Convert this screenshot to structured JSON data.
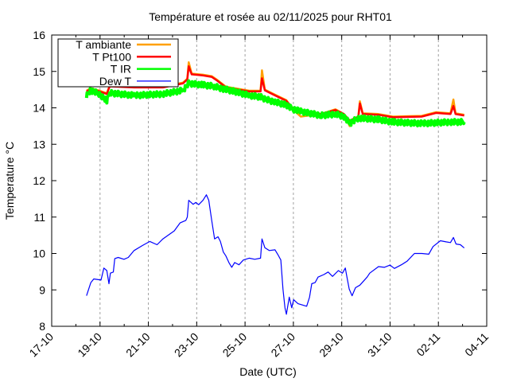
{
  "chart_data": {
    "type": "line",
    "title": "Température et rosée au 02/11/2025 pour RHT01",
    "xlabel": "Date (UTC)",
    "ylabel": "Temperature °C",
    "x_unit": "days since 17-10 00:00",
    "xlim": [
      0,
      18
    ],
    "ylim": [
      8,
      16
    ],
    "x_ticks": [
      {
        "value": 0,
        "label": "17-10"
      },
      {
        "value": 2,
        "label": "19-10"
      },
      {
        "value": 4,
        "label": "21-10"
      },
      {
        "value": 6,
        "label": "23-10"
      },
      {
        "value": 8,
        "label": "25-10"
      },
      {
        "value": 10,
        "label": "27-10"
      },
      {
        "value": 12,
        "label": "29-10"
      },
      {
        "value": 14,
        "label": "31-10"
      },
      {
        "value": 16,
        "label": "02-11"
      },
      {
        "value": 18,
        "label": "04-11"
      }
    ],
    "y_ticks": [
      {
        "value": 8,
        "label": "8"
      },
      {
        "value": 9,
        "label": "9"
      },
      {
        "value": 10,
        "label": "10"
      },
      {
        "value": 11,
        "label": "11"
      },
      {
        "value": 12,
        "label": "12"
      },
      {
        "value": 13,
        "label": "13"
      },
      {
        "value": 14,
        "label": "14"
      },
      {
        "value": 15,
        "label": "15"
      },
      {
        "value": 16,
        "label": "16"
      }
    ],
    "grid": "vertical dashed",
    "legend_position": "top-left",
    "series": [
      {
        "name": "T ambiante",
        "color": "#ffa000",
        "points": [
          [
            1.44,
            14.47
          ],
          [
            1.62,
            14.54
          ],
          [
            1.98,
            14.47
          ],
          [
            2.28,
            14.4
          ],
          [
            2.4,
            14.61
          ],
          [
            3.41,
            14.58
          ],
          [
            4.6,
            14.58
          ],
          [
            5.43,
            14.69
          ],
          [
            5.61,
            14.8
          ],
          [
            5.67,
            15.25
          ],
          [
            5.79,
            14.94
          ],
          [
            6.26,
            14.91
          ],
          [
            6.62,
            14.87
          ],
          [
            6.86,
            14.76
          ],
          [
            7.21,
            14.58
          ],
          [
            7.57,
            14.54
          ],
          [
            8.17,
            14.47
          ],
          [
            8.64,
            14.47
          ],
          [
            8.7,
            15.03
          ],
          [
            8.82,
            14.5
          ],
          [
            9.24,
            14.36
          ],
          [
            9.71,
            14.21
          ],
          [
            9.95,
            13.97
          ],
          [
            10.31,
            13.76
          ],
          [
            11.14,
            13.83
          ],
          [
            11.74,
            13.96
          ],
          [
            12.09,
            13.83
          ],
          [
            12.33,
            13.5
          ],
          [
            12.69,
            13.78
          ],
          [
            12.75,
            14.18
          ],
          [
            12.87,
            13.85
          ],
          [
            13.52,
            13.83
          ],
          [
            14.12,
            13.76
          ],
          [
            15.31,
            13.78
          ],
          [
            15.9,
            13.88
          ],
          [
            16.5,
            13.85
          ],
          [
            16.62,
            14.23
          ],
          [
            16.71,
            13.85
          ],
          [
            17.07,
            13.81
          ]
        ]
      },
      {
        "name": "T Pt100",
        "color": "#ff0000",
        "points": [
          [
            1.44,
            14.45
          ],
          [
            1.62,
            14.52
          ],
          [
            1.98,
            14.45
          ],
          [
            2.28,
            14.38
          ],
          [
            2.4,
            14.59
          ],
          [
            3.41,
            14.56
          ],
          [
            4.6,
            14.56
          ],
          [
            5.43,
            14.67
          ],
          [
            5.61,
            14.78
          ],
          [
            5.67,
            15.14
          ],
          [
            5.79,
            14.92
          ],
          [
            6.26,
            14.89
          ],
          [
            6.62,
            14.85
          ],
          [
            6.86,
            14.74
          ],
          [
            7.21,
            14.56
          ],
          [
            7.57,
            14.52
          ],
          [
            8.17,
            14.45
          ],
          [
            8.64,
            14.45
          ],
          [
            8.7,
            14.81
          ],
          [
            8.82,
            14.48
          ],
          [
            9.24,
            14.34
          ],
          [
            9.71,
            14.19
          ],
          [
            9.95,
            14.01
          ],
          [
            10.31,
            13.94
          ],
          [
            11.14,
            13.83
          ],
          [
            11.74,
            13.94
          ],
          [
            12.09,
            13.83
          ],
          [
            12.33,
            13.65
          ],
          [
            12.69,
            13.76
          ],
          [
            12.75,
            14.12
          ],
          [
            12.87,
            13.83
          ],
          [
            13.52,
            13.81
          ],
          [
            14.12,
            13.74
          ],
          [
            15.31,
            13.76
          ],
          [
            15.9,
            13.86
          ],
          [
            16.5,
            13.83
          ],
          [
            16.62,
            14.05
          ],
          [
            16.71,
            13.83
          ],
          [
            17.07,
            13.79
          ]
        ]
      },
      {
        "name": "T IR",
        "color": "#00ff00",
        "points": [
          [
            1.44,
            14.34
          ],
          [
            1.62,
            14.48
          ],
          [
            1.98,
            14.38
          ],
          [
            2.28,
            14.19
          ],
          [
            2.4,
            14.41
          ],
          [
            3.41,
            14.34
          ],
          [
            4.6,
            14.38
          ],
          [
            5.43,
            14.48
          ],
          [
            5.67,
            14.67
          ],
          [
            6.26,
            14.63
          ],
          [
            6.74,
            14.59
          ],
          [
            7.1,
            14.52
          ],
          [
            7.57,
            14.45
          ],
          [
            8.17,
            14.34
          ],
          [
            8.64,
            14.3
          ],
          [
            8.88,
            14.23
          ],
          [
            9.24,
            14.16
          ],
          [
            9.71,
            14.08
          ],
          [
            9.95,
            13.97
          ],
          [
            10.31,
            13.9
          ],
          [
            11.14,
            13.79
          ],
          [
            11.74,
            13.83
          ],
          [
            12.09,
            13.76
          ],
          [
            12.33,
            13.57
          ],
          [
            12.69,
            13.72
          ],
          [
            13.52,
            13.68
          ],
          [
            14.12,
            13.61
          ],
          [
            15.31,
            13.57
          ],
          [
            16.5,
            13.61
          ],
          [
            17.07,
            13.61
          ]
        ]
      },
      {
        "name": "Dew T",
        "color": "#0000ff",
        "points": [
          [
            1.44,
            8.84
          ],
          [
            1.62,
            9.2
          ],
          [
            1.74,
            9.3
          ],
          [
            2.04,
            9.27
          ],
          [
            2.16,
            9.6
          ],
          [
            2.28,
            9.53
          ],
          [
            2.37,
            9.17
          ],
          [
            2.43,
            9.46
          ],
          [
            2.55,
            9.49
          ],
          [
            2.61,
            9.86
          ],
          [
            2.75,
            9.89
          ],
          [
            2.99,
            9.84
          ],
          [
            3.17,
            9.89
          ],
          [
            3.41,
            10.08
          ],
          [
            3.76,
            10.22
          ],
          [
            4.06,
            10.33
          ],
          [
            4.36,
            10.24
          ],
          [
            4.6,
            10.4
          ],
          [
            5.07,
            10.62
          ],
          [
            5.31,
            10.84
          ],
          [
            5.55,
            10.91
          ],
          [
            5.61,
            11.0
          ],
          [
            5.67,
            11.46
          ],
          [
            5.85,
            11.35
          ],
          [
            5.96,
            11.4
          ],
          [
            6.08,
            11.34
          ],
          [
            6.26,
            11.46
          ],
          [
            6.4,
            11.61
          ],
          [
            6.5,
            11.46
          ],
          [
            6.62,
            10.91
          ],
          [
            6.74,
            10.4
          ],
          [
            6.88,
            10.46
          ],
          [
            6.98,
            10.33
          ],
          [
            7.1,
            10.04
          ],
          [
            7.21,
            9.93
          ],
          [
            7.33,
            9.75
          ],
          [
            7.45,
            9.62
          ],
          [
            7.57,
            9.75
          ],
          [
            7.75,
            9.69
          ],
          [
            7.93,
            9.82
          ],
          [
            8.17,
            9.87
          ],
          [
            8.4,
            9.84
          ],
          [
            8.64,
            9.87
          ],
          [
            8.7,
            10.4
          ],
          [
            8.82,
            10.16
          ],
          [
            9.0,
            10.08
          ],
          [
            9.24,
            10.1
          ],
          [
            9.36,
            9.97
          ],
          [
            9.48,
            9.82
          ],
          [
            9.57,
            9.02
          ],
          [
            9.65,
            8.51
          ],
          [
            9.71,
            8.33
          ],
          [
            9.83,
            8.8
          ],
          [
            9.93,
            8.51
          ],
          [
            10.01,
            8.73
          ],
          [
            10.19,
            8.62
          ],
          [
            10.55,
            8.55
          ],
          [
            10.67,
            8.8
          ],
          [
            10.76,
            9.17
          ],
          [
            10.9,
            9.2
          ],
          [
            11.02,
            9.35
          ],
          [
            11.26,
            9.42
          ],
          [
            11.44,
            9.49
          ],
          [
            11.62,
            9.37
          ],
          [
            11.86,
            9.53
          ],
          [
            12.03,
            9.46
          ],
          [
            12.15,
            9.6
          ],
          [
            12.21,
            9.38
          ],
          [
            12.31,
            9.02
          ],
          [
            12.43,
            8.84
          ],
          [
            12.57,
            9.06
          ],
          [
            12.75,
            9.13
          ],
          [
            13.05,
            9.35
          ],
          [
            13.16,
            9.46
          ],
          [
            13.52,
            9.64
          ],
          [
            13.76,
            9.62
          ],
          [
            14.0,
            9.68
          ],
          [
            14.18,
            9.59
          ],
          [
            14.47,
            9.69
          ],
          [
            14.71,
            9.79
          ],
          [
            15.01,
            10.0
          ],
          [
            15.31,
            10.0
          ],
          [
            15.6,
            9.98
          ],
          [
            15.78,
            10.19
          ],
          [
            16.08,
            10.35
          ],
          [
            16.32,
            10.32
          ],
          [
            16.5,
            10.3
          ],
          [
            16.62,
            10.44
          ],
          [
            16.73,
            10.26
          ],
          [
            16.91,
            10.24
          ],
          [
            17.07,
            10.15
          ]
        ]
      }
    ]
  }
}
